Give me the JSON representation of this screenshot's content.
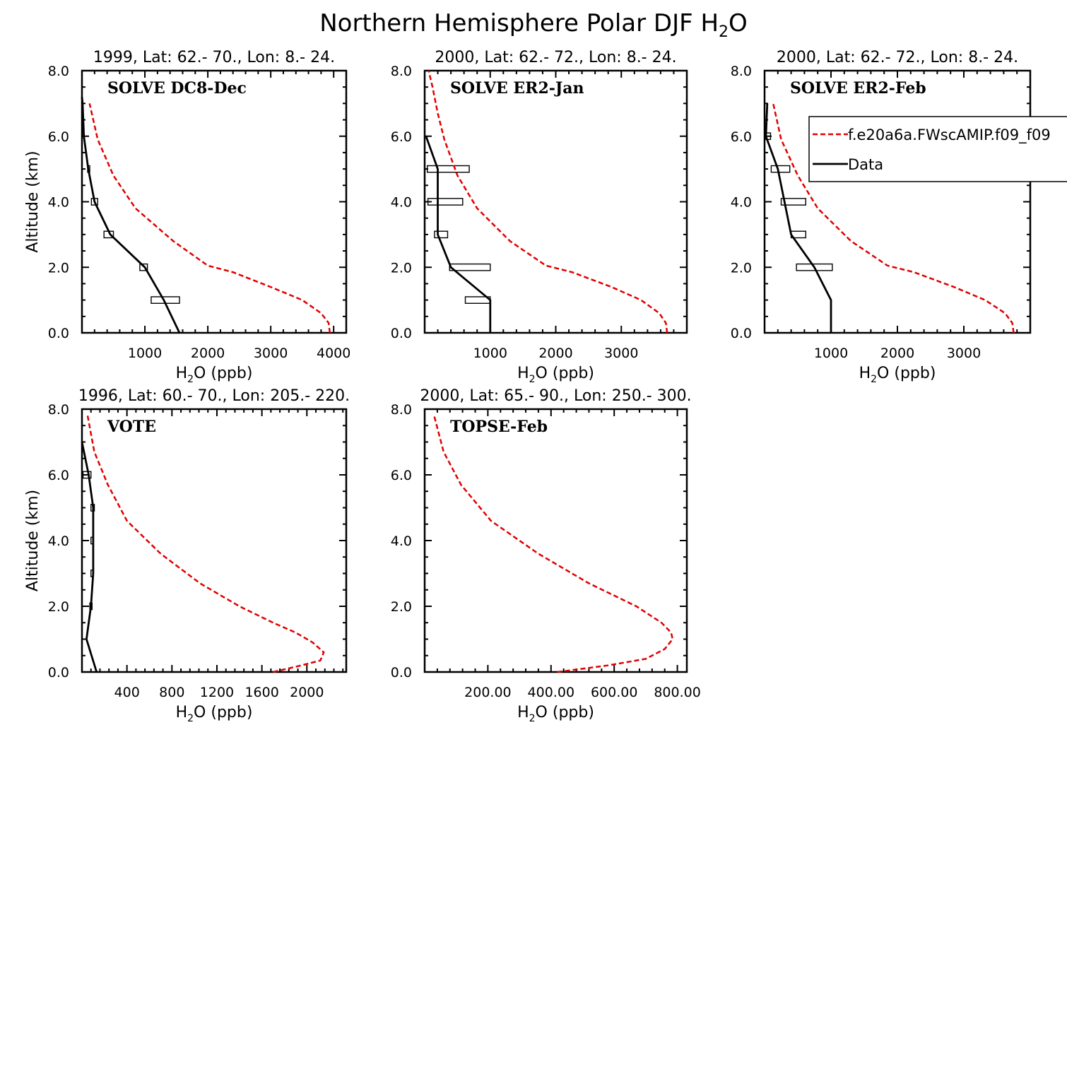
{
  "figure_title": "Northern Hemisphere Polar DJF H",
  "figure_title_sub": "2",
  "figure_title_tail": "O",
  "legend": {
    "model_label": "f.e20a6a.FWscAMIP.f09_f09",
    "data_label": "Data",
    "model_color": "#e00000",
    "data_color": "#000000"
  },
  "chart_data": [
    {
      "type": "line",
      "panel_label": "SOLVE DC8-Dec",
      "title": "1999, Lat: 62.- 70., Lon: 8.- 24.",
      "xlabel_main": "H",
      "xlabel_sub": "2",
      "xlabel_tail": "O (ppb)",
      "ylabel": "Altitude (km)",
      "xlim": [
        0,
        4200
      ],
      "ylim": [
        0,
        8
      ],
      "xticks": [
        1000,
        2000,
        3000,
        4000
      ],
      "xtick_labels": [
        "1000",
        "2000",
        "3000",
        "4000"
      ],
      "yticks": [
        0,
        2,
        4,
        6,
        8
      ],
      "ytick_labels": [
        "0.0",
        "2.0",
        "4.0",
        "6.0",
        "8.0"
      ],
      "show_ylabel": true,
      "series": [
        {
          "name": "model",
          "x": [
            3940,
            3920,
            3800,
            3500,
            3000,
            2600,
            2400,
            2000,
            1450,
            850,
            500,
            250,
            120
          ],
          "y": [
            0,
            0.3,
            0.6,
            1.0,
            1.4,
            1.7,
            1.85,
            2.05,
            2.8,
            3.8,
            4.8,
            5.9,
            7.0
          ]
        },
        {
          "name": "data",
          "x": [
            1550,
            1300,
            1000,
            450,
            200,
            100,
            30,
            10,
            0
          ],
          "y": [
            0,
            1,
            2,
            3,
            4,
            5,
            6,
            7,
            7.2
          ]
        }
      ],
      "error_bars": [
        {
          "y": 1,
          "lo": 1100,
          "hi": 1550
        },
        {
          "y": 2,
          "lo": 920,
          "hi": 1040
        },
        {
          "y": 3,
          "lo": 350,
          "hi": 500
        },
        {
          "y": 4,
          "lo": 150,
          "hi": 250
        },
        {
          "y": 5,
          "lo": 90,
          "hi": 110
        }
      ]
    },
    {
      "type": "line",
      "panel_label": "SOLVE ER2-Jan",
      "title": "2000, Lat: 62.- 72., Lon: 8.- 24.",
      "xlabel_main": "H",
      "xlabel_sub": "2",
      "xlabel_tail": "O (ppb)",
      "ylabel": "Altitude (km)",
      "xlim": [
        0,
        4000
      ],
      "ylim": [
        0,
        8
      ],
      "xticks": [
        1000,
        2000,
        3000
      ],
      "xtick_labels": [
        "1000",
        "2000",
        "3000"
      ],
      "yticks": [
        0,
        2,
        4,
        6,
        8
      ],
      "ytick_labels": [
        "0.0",
        "2.0",
        "4.0",
        "6.0",
        "8.0"
      ],
      "show_ylabel": false,
      "series": [
        {
          "name": "model",
          "x": [
            3700,
            3680,
            3580,
            3300,
            2850,
            2450,
            2250,
            1850,
            1300,
            800,
            500,
            300,
            200,
            120,
            60
          ],
          "y": [
            0,
            0.3,
            0.6,
            1.0,
            1.4,
            1.7,
            1.85,
            2.05,
            2.8,
            3.8,
            4.8,
            5.9,
            6.7,
            7.5,
            8.0
          ]
        },
        {
          "name": "data",
          "x": [
            1000,
            1000,
            400,
            200,
            200,
            200,
            20
          ],
          "y": [
            0,
            1,
            2,
            3,
            4,
            5,
            6
          ]
        }
      ],
      "error_bars": [
        {
          "y": 1,
          "lo": 620,
          "hi": 1000
        },
        {
          "y": 2,
          "lo": 380,
          "hi": 1000
        },
        {
          "y": 3,
          "lo": 150,
          "hi": 350
        },
        {
          "y": 4,
          "lo": 50,
          "hi": 580
        },
        {
          "y": 5,
          "lo": 40,
          "hi": 680
        }
      ]
    },
    {
      "type": "line",
      "panel_label": "SOLVE ER2-Feb",
      "title": "2000, Lat: 62.- 72., Lon: 8.- 24.",
      "xlabel_main": "H",
      "xlabel_sub": "2",
      "xlabel_tail": "O (ppb)",
      "ylabel": "Altitude (km)",
      "xlim": [
        0,
        4000
      ],
      "ylim": [
        0,
        8
      ],
      "xticks": [
        1000,
        2000,
        3000
      ],
      "xtick_labels": [
        "1000",
        "2000",
        "3000"
      ],
      "yticks": [
        0,
        2,
        4,
        6,
        8
      ],
      "ytick_labels": [
        "0.0",
        "2.0",
        "4.0",
        "6.0",
        "8.0"
      ],
      "show_ylabel": false,
      "series": [
        {
          "name": "model",
          "x": [
            3750,
            3730,
            3620,
            3320,
            2850,
            2450,
            2250,
            1850,
            1300,
            800,
            500,
            250,
            130
          ],
          "y": [
            0,
            0.3,
            0.6,
            1.0,
            1.4,
            1.7,
            1.85,
            2.05,
            2.8,
            3.8,
            4.8,
            5.9,
            7.0
          ]
        },
        {
          "name": "data",
          "x": [
            1000,
            1000,
            750,
            400,
            300,
            200,
            20,
            40
          ],
          "y": [
            0,
            1,
            2,
            3,
            4,
            5,
            6,
            7.0
          ]
        }
      ],
      "error_bars": [
        {
          "y": 2,
          "lo": 480,
          "hi": 1020
        },
        {
          "y": 3,
          "lo": 400,
          "hi": 620
        },
        {
          "y": 4,
          "lo": 250,
          "hi": 620
        },
        {
          "y": 5,
          "lo": 100,
          "hi": 380
        },
        {
          "y": 6,
          "lo": 20,
          "hi": 90
        }
      ]
    },
    {
      "type": "line",
      "panel_label": "VOTE",
      "title": "1996, Lat: 60.- 70., Lon: 205.- 220.",
      "xlabel_main": "H",
      "xlabel_sub": "2",
      "xlabel_tail": "O (ppb)",
      "ylabel": "Altitude (km)",
      "xlim": [
        0,
        2350
      ],
      "ylim": [
        0,
        8
      ],
      "xticks": [
        400,
        800,
        1200,
        1600,
        2000
      ],
      "xtick_labels": [
        "400",
        "800",
        "1200",
        "1600",
        "2000"
      ],
      "yticks": [
        0,
        2,
        4,
        6,
        8
      ],
      "ytick_labels": [
        "0.0",
        "2.0",
        "4.0",
        "6.0",
        "8.0"
      ],
      "show_ylabel": true,
      "series": [
        {
          "name": "model",
          "x": [
            1700,
            1950,
            2120,
            2150,
            2050,
            1900,
            1700,
            1400,
            1050,
            700,
            400,
            230,
            110,
            50
          ],
          "y": [
            0,
            0.2,
            0.35,
            0.6,
            0.9,
            1.2,
            1.5,
            2.0,
            2.7,
            3.6,
            4.6,
            5.7,
            6.7,
            7.8
          ]
        },
        {
          "name": "data",
          "x": [
            130,
            40,
            80,
            100,
            100,
            100,
            60,
            0
          ],
          "y": [
            0,
            1,
            2,
            3,
            4,
            5,
            6,
            7.0
          ]
        }
      ],
      "error_bars": [
        {
          "y": 2,
          "lo": 70,
          "hi": 90
        },
        {
          "y": 3,
          "lo": 80,
          "hi": 100
        },
        {
          "y": 4,
          "lo": 80,
          "hi": 100
        },
        {
          "y": 5,
          "lo": 80,
          "hi": 110
        },
        {
          "y": 6,
          "lo": 10,
          "hi": 80
        }
      ]
    },
    {
      "type": "line",
      "panel_label": "TOPSE-Feb",
      "title": "2000, Lat: 65.- 90., Lon: 250.- 300.",
      "xlabel_main": "H",
      "xlabel_sub": "2",
      "xlabel_tail": "O (ppb)",
      "ylabel": "Altitude (km)",
      "xlim": [
        0,
        830
      ],
      "ylim": [
        0,
        8
      ],
      "xticks": [
        200,
        400,
        600,
        800
      ],
      "xtick_labels": [
        "200.00",
        "400.00",
        "600.00",
        "800.00"
      ],
      "yticks": [
        0,
        2,
        4,
        6,
        8
      ],
      "ytick_labels": [
        "0.0",
        "2.0",
        "4.0",
        "6.0",
        "8.0"
      ],
      "show_ylabel": false,
      "series": [
        {
          "name": "model",
          "x": [
            420,
            580,
            700,
            760,
            785,
            780,
            750,
            670,
            520,
            360,
            210,
            115,
            60,
            30
          ],
          "y": [
            0,
            0.2,
            0.4,
            0.7,
            1.0,
            1.2,
            1.5,
            2.0,
            2.7,
            3.6,
            4.6,
            5.7,
            6.7,
            7.8
          ]
        }
      ],
      "error_bars": []
    }
  ]
}
